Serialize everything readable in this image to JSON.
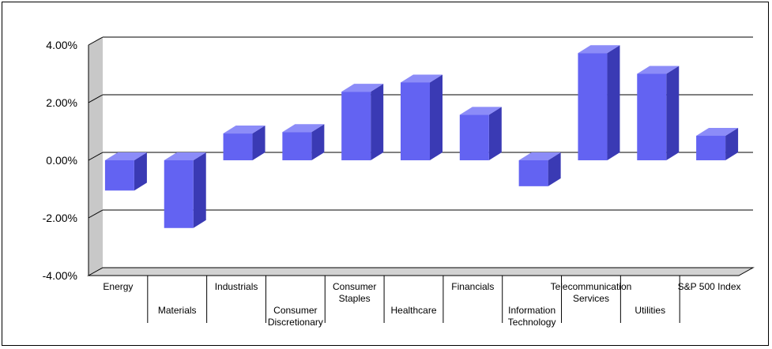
{
  "chart_data": {
    "type": "bar",
    "title": "",
    "xlabel": "",
    "ylabel": "",
    "ylim": [
      -4,
      4
    ],
    "y_ticks": [
      "4.00%",
      "2.00%",
      "0.00%",
      "-2.00%",
      "-4.00%"
    ],
    "grid": true,
    "three_d": true,
    "categories": [
      [
        "Energy"
      ],
      [
        "Materials"
      ],
      [
        "Industrials"
      ],
      [
        "Consumer",
        "Discretionary"
      ],
      [
        "Consumer",
        "Staples"
      ],
      [
        "Healthcare"
      ],
      [
        "Financials"
      ],
      [
        "Information",
        "Technology"
      ],
      [
        "Telecommunication",
        "Services"
      ],
      [
        "Utilities"
      ],
      [
        "S&P 500 Index"
      ]
    ],
    "values": [
      -1.05,
      -2.35,
      0.93,
      0.98,
      2.38,
      2.7,
      1.58,
      -0.9,
      3.72,
      3.0,
      0.85
    ],
    "colors": {
      "bar_front": "#6363f2",
      "bar_side": "#3a3ab4",
      "bar_top": "#8c8cf8",
      "wall": "#c8c8c8",
      "floor": "#d2d2d2",
      "grid": "#000000"
    }
  }
}
